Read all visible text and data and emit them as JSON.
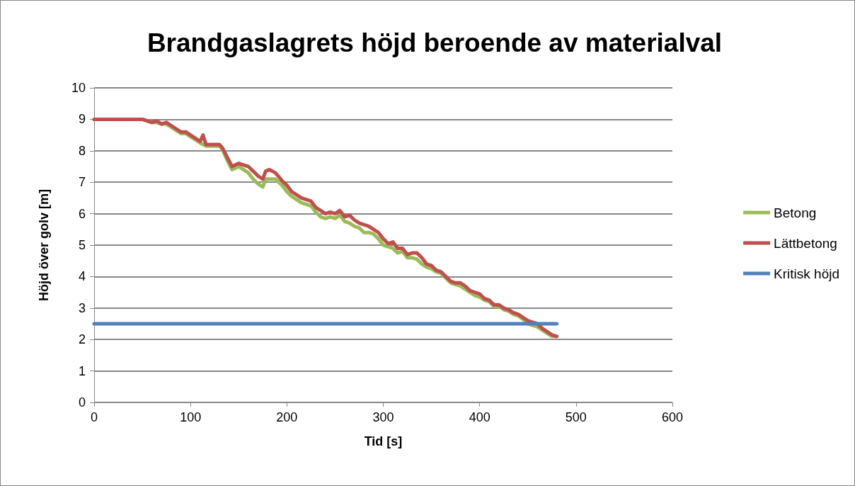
{
  "chart_data": {
    "type": "line",
    "title": "Brandgaslagrets höjd beroende av materialval",
    "xlabel": "Tid [s]",
    "ylabel": "Höjd över golv [m]",
    "xlim": [
      0,
      600
    ],
    "xticks": [
      0,
      100,
      200,
      300,
      400,
      500,
      600
    ],
    "ylim": [
      0,
      10
    ],
    "yticks": [
      0,
      1,
      2,
      3,
      4,
      5,
      6,
      7,
      8,
      9,
      10
    ],
    "grid": "y",
    "legend": "right",
    "marker": "none",
    "line_style": "solid",
    "series": [
      {
        "name": "Betong",
        "color": "#9bbb59",
        "x": [
          0,
          50,
          55,
          60,
          65,
          70,
          75,
          80,
          85,
          90,
          95,
          100,
          105,
          110,
          116,
          120,
          125,
          130,
          133,
          138,
          143,
          150,
          155,
          160,
          165,
          170,
          175,
          178,
          182,
          188,
          195,
          200,
          205,
          210,
          215,
          220,
          225,
          230,
          235,
          240,
          245,
          250,
          255,
          260,
          265,
          270,
          275,
          280,
          285,
          290,
          295,
          300,
          305,
          310,
          315,
          320,
          325,
          330,
          335,
          340,
          345,
          350,
          355,
          360,
          365,
          370,
          375,
          380,
          385,
          390,
          395,
          400,
          405,
          410,
          415,
          420,
          425,
          430,
          435,
          440,
          445,
          450,
          455,
          460,
          465,
          470,
          475,
          480
        ],
        "values": [
          9,
          9,
          8.95,
          8.9,
          8.9,
          8.85,
          8.85,
          8.75,
          8.65,
          8.55,
          8.55,
          8.45,
          8.35,
          8.25,
          8.15,
          8.15,
          8.15,
          8.15,
          8.05,
          7.7,
          7.4,
          7.5,
          7.4,
          7.3,
          7.1,
          6.95,
          6.85,
          7.1,
          7.1,
          7.1,
          6.9,
          6.7,
          6.55,
          6.45,
          6.35,
          6.3,
          6.25,
          6.05,
          5.9,
          5.85,
          5.9,
          5.85,
          5.95,
          5.75,
          5.7,
          5.6,
          5.55,
          5.4,
          5.4,
          5.35,
          5.2,
          5.0,
          4.95,
          4.9,
          4.75,
          4.8,
          4.6,
          4.6,
          4.55,
          4.4,
          4.3,
          4.25,
          4.15,
          4.1,
          3.95,
          3.8,
          3.75,
          3.7,
          3.6,
          3.5,
          3.4,
          3.35,
          3.25,
          3.2,
          3.05,
          3.05,
          2.95,
          2.9,
          2.8,
          2.75,
          2.65,
          2.5,
          2.45,
          2.4,
          2.3,
          2.2,
          2.1,
          2.1
        ]
      },
      {
        "name": "Lättbetong",
        "color": "#c0504d",
        "x": [
          0,
          50,
          55,
          60,
          65,
          70,
          75,
          80,
          85,
          90,
          95,
          100,
          105,
          110,
          113,
          116,
          120,
          125,
          130,
          133,
          138,
          143,
          150,
          155,
          160,
          165,
          170,
          175,
          178,
          182,
          188,
          195,
          200,
          205,
          210,
          215,
          220,
          225,
          230,
          235,
          240,
          245,
          250,
          255,
          260,
          265,
          270,
          275,
          280,
          285,
          290,
          295,
          300,
          305,
          310,
          315,
          320,
          325,
          330,
          335,
          340,
          345,
          350,
          355,
          360,
          365,
          370,
          375,
          380,
          385,
          390,
          395,
          400,
          405,
          410,
          415,
          420,
          425,
          430,
          435,
          440,
          445,
          450,
          455,
          460,
          465,
          470,
          475,
          480
        ],
        "values": [
          9,
          9,
          8.95,
          8.9,
          8.95,
          8.85,
          8.9,
          8.8,
          8.7,
          8.6,
          8.6,
          8.5,
          8.4,
          8.3,
          8.5,
          8.2,
          8.2,
          8.2,
          8.2,
          8.1,
          7.8,
          7.5,
          7.6,
          7.55,
          7.5,
          7.35,
          7.2,
          7.1,
          7.35,
          7.4,
          7.3,
          7.05,
          6.9,
          6.7,
          6.6,
          6.5,
          6.45,
          6.4,
          6.2,
          6.1,
          6.0,
          6.05,
          6.0,
          6.1,
          5.9,
          5.95,
          5.8,
          5.7,
          5.65,
          5.6,
          5.5,
          5.4,
          5.2,
          5.05,
          5.1,
          4.9,
          4.9,
          4.7,
          4.75,
          4.75,
          4.6,
          4.4,
          4.35,
          4.2,
          4.15,
          4.0,
          3.85,
          3.8,
          3.8,
          3.7,
          3.55,
          3.5,
          3.45,
          3.3,
          3.25,
          3.1,
          3.1,
          3.0,
          2.95,
          2.85,
          2.8,
          2.7,
          2.6,
          2.55,
          2.5,
          2.35,
          2.25,
          2.15,
          2.1
        ]
      },
      {
        "name": "Kritisk höjd",
        "color": "#4f81bd",
        "x": [
          0,
          480
        ],
        "values": [
          2.5,
          2.5
        ]
      }
    ]
  }
}
